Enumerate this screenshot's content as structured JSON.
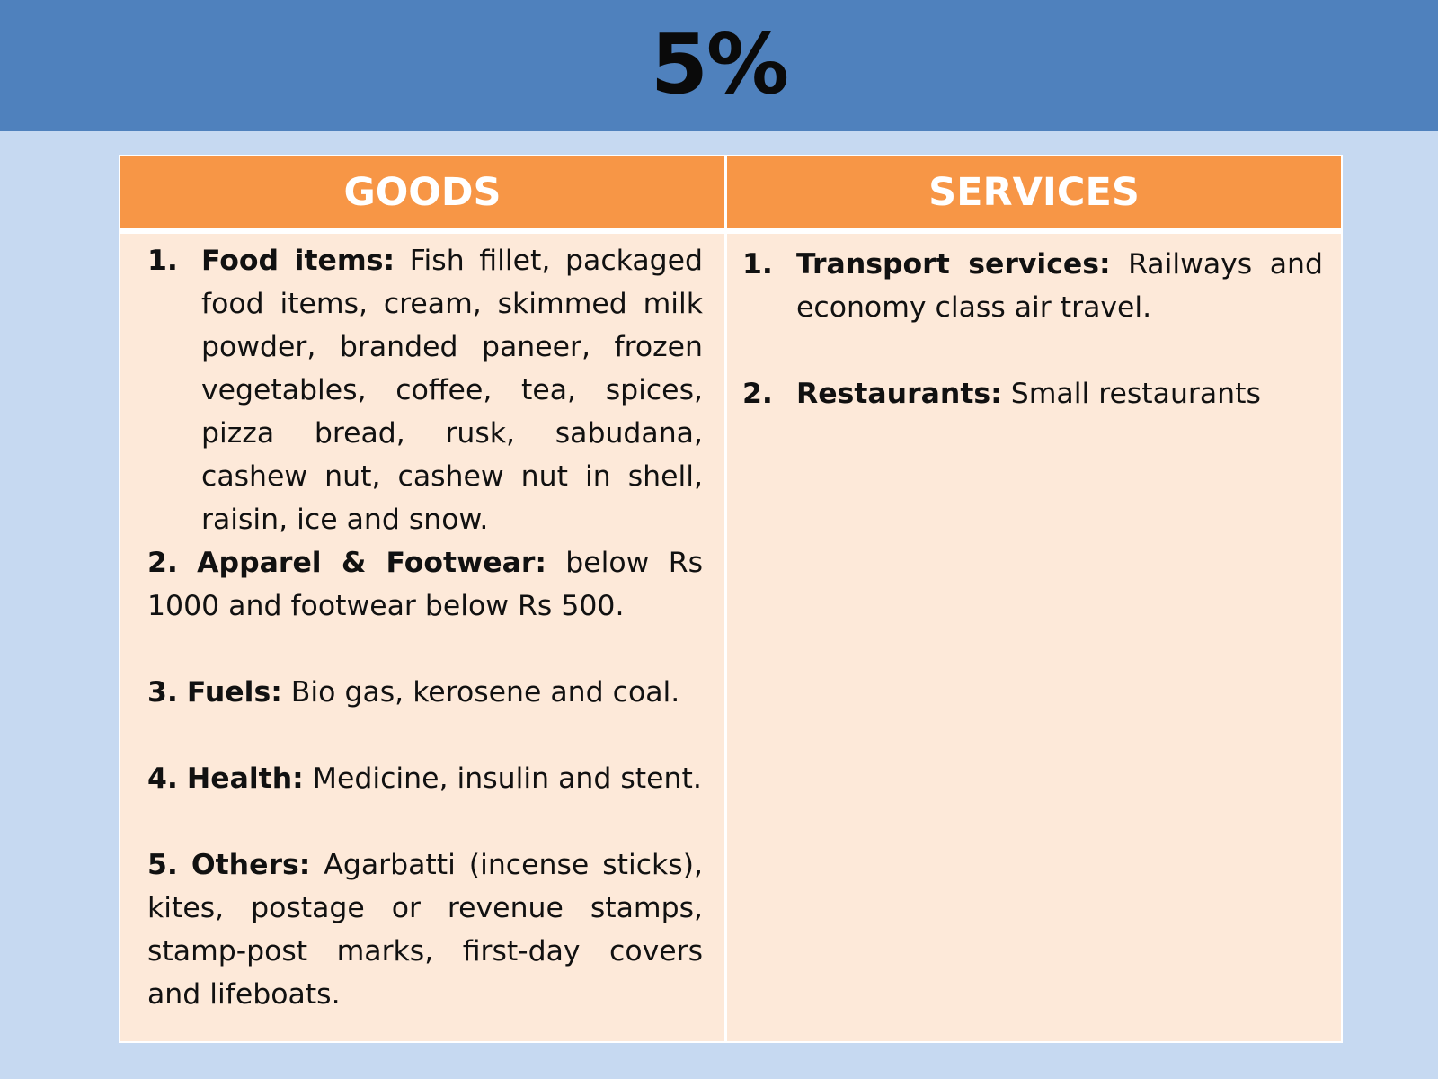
{
  "slide": {
    "title": "5%"
  },
  "table": {
    "headers": {
      "goods": "GOODS",
      "services": "SERVICES"
    },
    "goods": [
      {
        "number": "1.",
        "heading": "Food items:",
        "text": " Fish fillet, packaged food items, cream, skimmed milk powder, branded paneer, frozen vegetables, coffee, tea, spices, pizza bread, rusk, sabudana, cashew nut, cashew nut in shell, raisin, ice and snow."
      },
      {
        "number": "2.",
        "heading": "Apparel & Footwear:",
        "text": " below Rs 1000 and footwear below Rs 500."
      },
      {
        "number": "3.",
        "heading": "Fuels:",
        "text": " Bio gas, kerosene and coal."
      },
      {
        "number": "4.",
        "heading": "Health:",
        "text": " Medicine, insulin and stent."
      },
      {
        "number": "5.",
        "heading": "Others:",
        "text": " Agarbatti (incense sticks), kites, postage or revenue stamps, stamp-post marks, first-day covers and lifeboats."
      }
    ],
    "services": [
      {
        "number": "1.",
        "heading": "Transport services:",
        "text": " Railways and economy class air travel."
      },
      {
        "number": "2.",
        "heading": "Restaurants:",
        "text": " Small restaurants"
      }
    ]
  }
}
